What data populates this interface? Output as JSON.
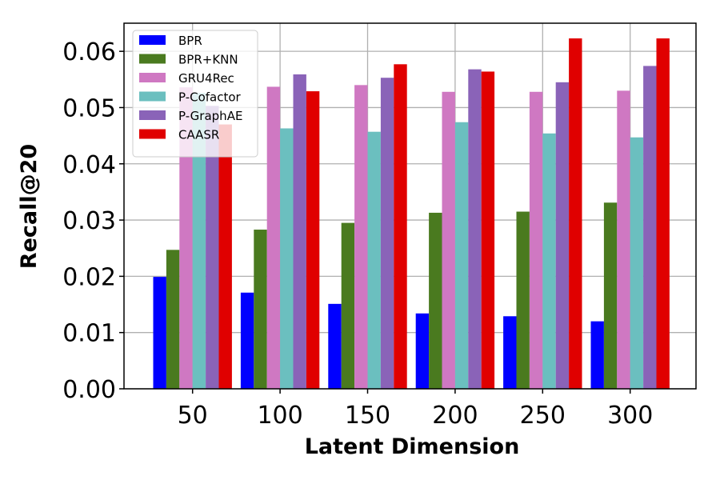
{
  "chart_data": {
    "type": "bar",
    "title": "",
    "xlabel": "Latent Dimension",
    "ylabel": "Recall@20",
    "categories": [
      "50",
      "100",
      "150",
      "200",
      "250",
      "300"
    ],
    "ylim": [
      0,
      0.065
    ],
    "yticks": [
      "0.00",
      "0.01",
      "0.02",
      "0.03",
      "0.04",
      "0.05",
      "0.06"
    ],
    "grid": true,
    "legend_position": "top-left",
    "series": [
      {
        "name": "BPR",
        "color": "#0000ff",
        "values": [
          0.0199,
          0.0171,
          0.0151,
          0.0134,
          0.0129,
          0.012
        ]
      },
      {
        "name": "BPR+KNN",
        "color": "#4a7a1f",
        "values": [
          0.0247,
          0.0283,
          0.0295,
          0.0313,
          0.0315,
          0.0331
        ]
      },
      {
        "name": "GRU4Rec",
        "color": "#cf78c2",
        "values": [
          0.0536,
          0.0537,
          0.054,
          0.0528,
          0.0528,
          0.053
        ]
      },
      {
        "name": "P-Cofactor",
        "color": "#6bbfbf",
        "values": [
          0.0526,
          0.0463,
          0.0457,
          0.0474,
          0.0454,
          0.0447
        ]
      },
      {
        "name": "P-GraphAE",
        "color": "#8a63b8",
        "values": [
          0.0503,
          0.0559,
          0.0553,
          0.0568,
          0.0545,
          0.0574
        ]
      },
      {
        "name": "CAASR",
        "color": "#e00000",
        "values": [
          0.047,
          0.0529,
          0.0577,
          0.0564,
          0.0623,
          0.0623
        ]
      }
    ]
  }
}
